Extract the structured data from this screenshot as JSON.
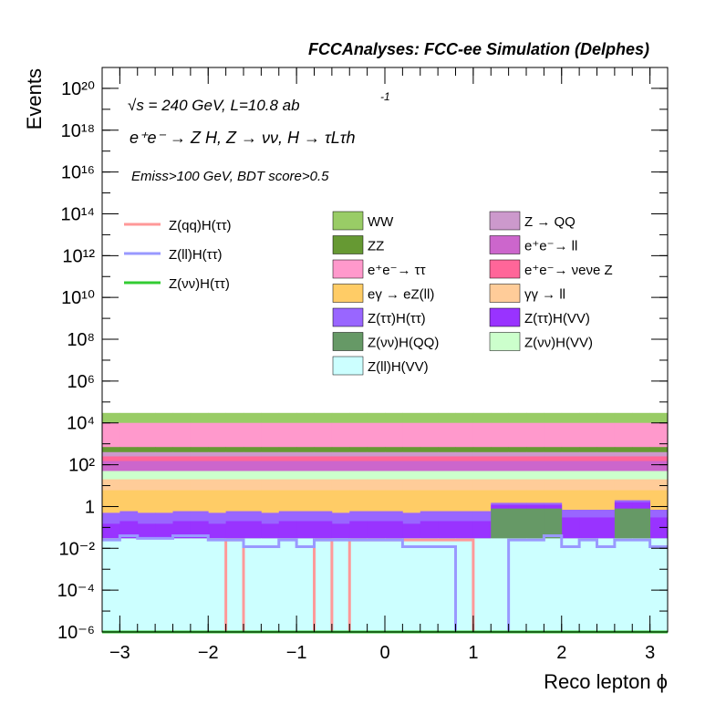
{
  "chart_data": {
    "type": "histogram-stack",
    "title": "FCCAnalyses: FCC-ee Simulation (Delphes)",
    "xlabel": "Reco lepton ϕ",
    "ylabel": "Events",
    "annotations": {
      "energy": "√s = 240 GeV, L=10.8 ab",
      "energy_sup": "-1",
      "process": "e⁺e⁻ → Z H, Z → νν, H → τLτh",
      "cuts": "Emiss>100 GeV, BDT score>0.5"
    },
    "xlim": [
      -3.2,
      3.2
    ],
    "ylim": [
      1e-06,
      1e+21
    ],
    "ylog": true,
    "x_ticks": [
      "−3",
      "−2",
      "−1",
      "0",
      "1",
      "2",
      "3"
    ],
    "y_ticks": [
      "10⁻⁶",
      "10⁻⁴",
      "10⁻²",
      "1",
      "10²",
      "10⁴",
      "10⁶",
      "10⁸",
      "10¹⁰",
      "10¹²",
      "10¹⁴",
      "10¹⁶",
      "10¹⁸",
      "10²⁰"
    ],
    "nbins": 32,
    "stack_tops": [
      {
        "name": "Z(ll)H(VV)",
        "color": "#ccffff",
        "values": [
          0.03,
          0.03,
          0.03,
          0.03,
          0.03,
          0.03,
          0.03,
          0.03,
          0.03,
          0.03,
          0.03,
          0.03,
          0.03,
          0.03,
          0.03,
          0.03,
          0.03,
          0.03,
          0.03,
          0.03,
          0.03,
          0.03,
          0.03,
          0.03,
          0.03,
          0.03,
          0.03,
          0.03,
          0.03,
          0.03,
          0.03,
          0.03
        ]
      },
      {
        "name": "Z(νν)H(QQ)",
        "color": "#669966",
        "values": [
          0.03,
          0.03,
          0.03,
          0.03,
          0.03,
          0.03,
          0.03,
          0.03,
          0.03,
          0.03,
          0.03,
          0.03,
          0.03,
          0.03,
          0.03,
          0.03,
          0.03,
          0.03,
          0.03,
          0.03,
          0.03,
          0.03,
          0.8,
          0.8,
          0.8,
          0.8,
          0.03,
          0.03,
          0.03,
          0.8,
          0.8,
          0.03
        ]
      },
      {
        "name": "Z(ττ)H(VV)",
        "color": "#9933ff",
        "values": [
          0.15,
          0.2,
          0.15,
          0.15,
          0.2,
          0.2,
          0.15,
          0.2,
          0.2,
          0.15,
          0.2,
          0.2,
          0.2,
          0.15,
          0.2,
          0.2,
          0.2,
          0.15,
          0.2,
          0.2,
          0.2,
          0.2,
          1.2,
          1.2,
          1.2,
          1.2,
          0.3,
          0.3,
          0.3,
          1.6,
          1.6,
          0.3
        ]
      },
      {
        "name": "Z(ττ)H(ττ)",
        "color": "#9966ff",
        "values": [
          0.5,
          0.6,
          0.5,
          0.5,
          0.6,
          0.6,
          0.5,
          0.6,
          0.6,
          0.5,
          0.6,
          0.6,
          0.6,
          0.5,
          0.6,
          0.6,
          0.6,
          0.5,
          0.6,
          0.6,
          0.6,
          0.6,
          1.5,
          1.5,
          1.5,
          1.5,
          0.7,
          0.7,
          0.7,
          2,
          2,
          0.7
        ]
      },
      {
        "name": "eγ → eZ(ll)",
        "color": "#ffcc66",
        "values": [
          6,
          6,
          6,
          6,
          6,
          6,
          6,
          6,
          6,
          6,
          6,
          6,
          6,
          6,
          6,
          6,
          6,
          6,
          6,
          6,
          6,
          6,
          6,
          6,
          6,
          6,
          6,
          6,
          6,
          6,
          6,
          6
        ]
      },
      {
        "name": "γγ → ll",
        "color": "#ffcc99",
        "values": [
          20,
          20,
          20,
          20,
          20,
          20,
          20,
          20,
          20,
          20,
          20,
          20,
          20,
          20,
          20,
          20,
          20,
          20,
          20,
          20,
          20,
          20,
          20,
          20,
          20,
          20,
          20,
          20,
          20,
          20,
          20,
          20
        ]
      },
      {
        "name": "Z(νν)H(VV)",
        "color": "#ccffcc",
        "values": [
          50,
          50,
          50,
          50,
          50,
          50,
          50,
          50,
          50,
          50,
          50,
          50,
          50,
          50,
          50,
          50,
          50,
          50,
          50,
          50,
          50,
          50,
          50,
          50,
          50,
          50,
          50,
          50,
          50,
          50,
          50,
          50
        ]
      },
      {
        "name": "e⁺e⁻ → ll",
        "color": "#cc66cc",
        "values": [
          150,
          150,
          150,
          150,
          150,
          150,
          150,
          150,
          150,
          150,
          150,
          150,
          150,
          150,
          150,
          150,
          150,
          150,
          150,
          150,
          150,
          150,
          150,
          150,
          150,
          150,
          150,
          150,
          150,
          150,
          150,
          150
        ]
      },
      {
        "name": "e⁺e⁻ → νeνe Z",
        "color": "#ff6699",
        "values": [
          250,
          250,
          250,
          250,
          250,
          250,
          250,
          250,
          250,
          250,
          250,
          250,
          250,
          250,
          250,
          250,
          250,
          250,
          250,
          250,
          250,
          250,
          250,
          250,
          250,
          250,
          250,
          250,
          250,
          250,
          250,
          250
        ]
      },
      {
        "name": "Z → QQ",
        "color": "#cc99cc",
        "values": [
          400,
          400,
          400,
          400,
          400,
          400,
          400,
          400,
          400,
          400,
          400,
          400,
          400,
          400,
          400,
          400,
          400,
          400,
          400,
          400,
          400,
          400,
          400,
          400,
          400,
          400,
          400,
          400,
          400,
          400,
          400,
          400
        ]
      },
      {
        "name": "ZZ",
        "color": "#669933",
        "values": [
          700,
          700,
          700,
          700,
          700,
          700,
          700,
          700,
          700,
          700,
          700,
          700,
          700,
          700,
          700,
          700,
          700,
          700,
          700,
          700,
          700,
          700,
          700,
          700,
          700,
          700,
          700,
          700,
          700,
          700,
          700,
          700
        ]
      },
      {
        "name": "e⁺e⁻ → ττ",
        "color": "#ff99cc",
        "values": [
          10000,
          10000,
          10000,
          10000,
          10000,
          10000,
          10000,
          10000,
          10000,
          10000,
          10000,
          10000,
          10000,
          10000,
          10000,
          10000,
          10000,
          10000,
          10000,
          10000,
          10000,
          10000,
          10000,
          10000,
          10000,
          10000,
          10000,
          10000,
          10000,
          10000,
          10000,
          10000
        ]
      },
      {
        "name": "WW",
        "color": "#99cc66",
        "values": [
          30000,
          30000,
          30000,
          30000,
          30000,
          30000,
          30000,
          30000,
          30000,
          30000,
          30000,
          30000,
          30000,
          30000,
          30000,
          30000,
          30000,
          30000,
          30000,
          30000,
          30000,
          30000,
          30000,
          30000,
          30000,
          30000,
          30000,
          30000,
          30000,
          30000,
          30000,
          30000
        ]
      }
    ],
    "lines": [
      {
        "name": "Z(qq)H(ττ)",
        "color": "#ff9999",
        "values": [
          0,
          0,
          0,
          0,
          0,
          0,
          0,
          0.025,
          0,
          0,
          0,
          0,
          0.025,
          0,
          0.025,
          0.025,
          0.025,
          0.025,
          0.025,
          0.025,
          0.025,
          0,
          0,
          0,
          0,
          0,
          0,
          0,
          0,
          0,
          0,
          0
        ]
      },
      {
        "name": "Z(ll)H(ττ)",
        "color": "#9999ff",
        "values": [
          0.025,
          0.04,
          0.03,
          0.03,
          0.04,
          0.04,
          0.025,
          0.025,
          0.012,
          0.012,
          0.025,
          0.012,
          0.025,
          0.025,
          0.025,
          0.025,
          0.025,
          0.012,
          0.012,
          0.012,
          0,
          0,
          0,
          0.025,
          0.025,
          0.04,
          0.012,
          0.025,
          0.012,
          0.025,
          0.025,
          0.012
        ]
      },
      {
        "name": "Z(νν)H(ττ)",
        "color": "#33cc33",
        "values": [
          0,
          0,
          0,
          0,
          0,
          0,
          0,
          0,
          0,
          0,
          0,
          0,
          0,
          0,
          0,
          0,
          0,
          0,
          0,
          0,
          0,
          0,
          0,
          0,
          0,
          0,
          0,
          0,
          0,
          0,
          0,
          0
        ]
      }
    ],
    "legend_left": [
      "Z(qq)H(ττ)",
      "Z(ll)H(ττ)",
      "Z(νν)H(ττ)"
    ],
    "legend_mid": [
      "WW",
      "ZZ",
      "e⁺e⁻→ ττ",
      "eγ → eZ(ll)",
      "Z(ττ)H(ττ)",
      "Z(νν)H(QQ)",
      "Z(ll)H(VV)"
    ],
    "legend_right": [
      "Z → QQ",
      "e⁺e⁻→ ll",
      "e⁺e⁻→ νeνe Z",
      "γγ → ll",
      "Z(ττ)H(VV)",
      "Z(νν)H(VV)"
    ],
    "legend_mid_colors": [
      "#99cc66",
      "#669933",
      "#ff99cc",
      "#ffcc66",
      "#9966ff",
      "#669966",
      "#ccffff"
    ],
    "legend_right_colors": [
      "#cc99cc",
      "#cc66cc",
      "#ff6699",
      "#ffcc99",
      "#9933ff",
      "#ccffcc"
    ],
    "legend_left_colors": [
      "#ff9999",
      "#9999ff",
      "#33cc33"
    ]
  }
}
